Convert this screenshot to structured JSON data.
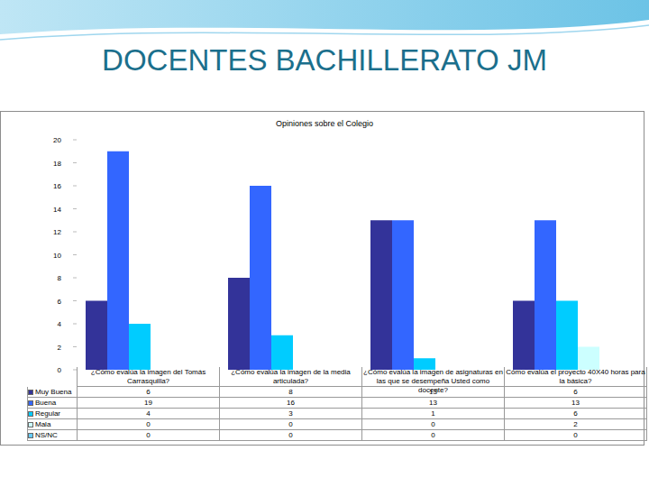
{
  "header": {
    "title": "DOCENTES BACHILLERATO JM"
  },
  "chart_data": {
    "type": "bar",
    "title": "Opiniones sobre el Colegio",
    "categories": [
      "¿Cómo evalúa la imagen del Tomás Carrasquilla?",
      "¿Cómo evalúa la imagen de la media articulada?",
      "¿Cómo evalúa la imagen de asignaturas en las que se desempeña Usted como docente?",
      "Cómo evalúa el proyecto 40X40 horas para la básica?"
    ],
    "series": [
      {
        "name": "Muy Buena",
        "color": "#333399",
        "values": [
          6,
          8,
          13,
          6
        ]
      },
      {
        "name": "Buena",
        "color": "#3366ff",
        "values": [
          19,
          16,
          13,
          13
        ]
      },
      {
        "name": "Regular",
        "color": "#00ccff",
        "values": [
          4,
          3,
          1,
          6
        ]
      },
      {
        "name": "Mala",
        "color": "#ccffff",
        "values": [
          0,
          0,
          0,
          2
        ]
      },
      {
        "name": "NS/NC",
        "color": "#66ccff",
        "values": [
          0,
          0,
          0,
          0
        ]
      }
    ],
    "ylim": [
      0,
      20
    ],
    "yticks": [
      0,
      2,
      4,
      6,
      8,
      10,
      12,
      14,
      16,
      18,
      20
    ],
    "grid": false
  }
}
